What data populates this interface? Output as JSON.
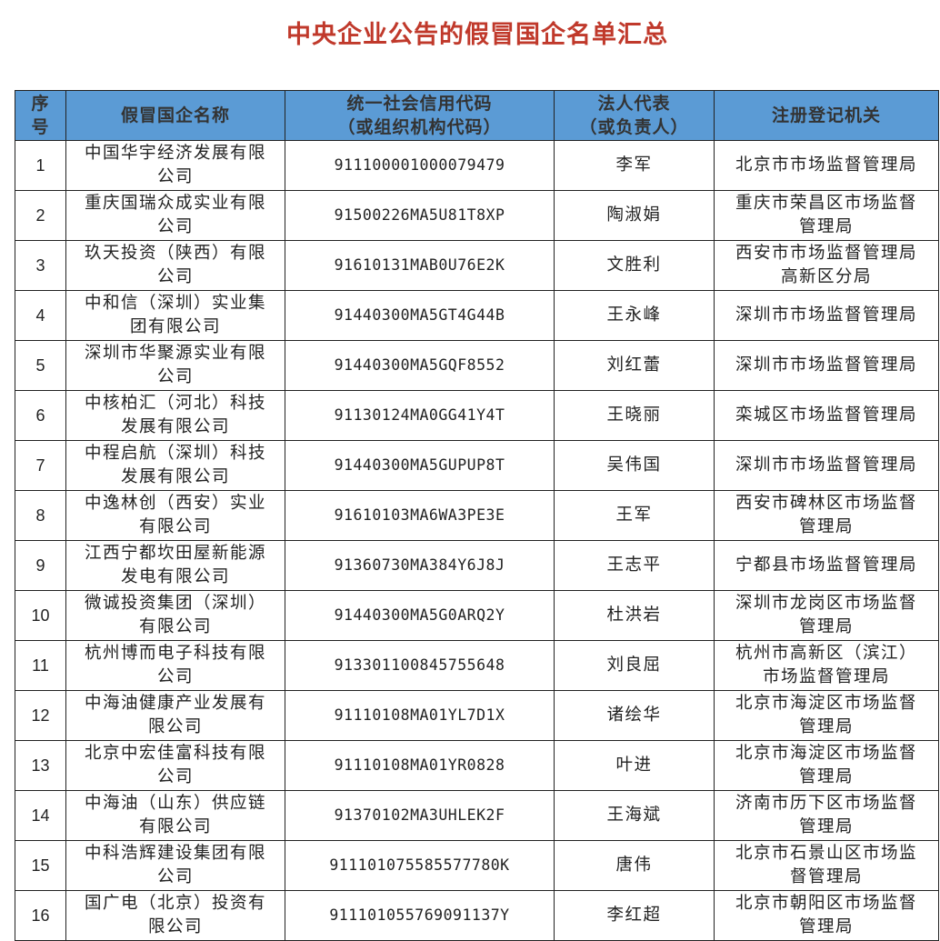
{
  "title": "中央企业公告的假冒国企名单汇总",
  "colors": {
    "title": "#c0392b",
    "header_bg": "#5b9bd5"
  },
  "headers": [
    "序\n号",
    "假冒国企名称",
    "统一社会信用代码\n（或组织机构代码）",
    "法人代表\n（或负责人）",
    "注册登记机关"
  ],
  "rows": [
    [
      "1",
      "中国华宇经济发展有限\n公司",
      "911100001000079479",
      "李军",
      "北京市市场监督管理局"
    ],
    [
      "2",
      "重庆国瑞众成实业有限\n公司",
      "91500226MA5U81T8XP",
      "陶淑娟",
      "重庆市荣昌区市场监督\n管理局"
    ],
    [
      "3",
      "玖天投资（陕西）有限\n公司",
      "91610131MAB0U76E2K",
      "文胜利",
      "西安市市场监督管理局\n高新区分局"
    ],
    [
      "4",
      "中和信（深圳）实业集\n团有限公司",
      "91440300MA5GT4G44B",
      "王永峰",
      "深圳市市场监督管理局"
    ],
    [
      "5",
      "深圳市华聚源实业有限\n公司",
      "91440300MA5GQF8552",
      "刘红蕾",
      "深圳市市场监督管理局"
    ],
    [
      "6",
      "中核柏汇（河北）科技\n发展有限公司",
      "91130124MA0GG41Y4T",
      "王晓丽",
      "栾城区市场监督管理局"
    ],
    [
      "7",
      "中程启航（深圳）科技\n发展有限公司",
      "91440300MA5GUPUP8T",
      "吴伟国",
      "深圳市市场监督管理局"
    ],
    [
      "8",
      "中逸林创（西安）实业\n有限公司",
      "91610103MA6WA3PE3E",
      "王军",
      "西安市碑林区市场监督\n管理局"
    ],
    [
      "9",
      "江西宁都坎田屋新能源\n发电有限公司",
      "91360730MA384Y6J8J",
      "王志平",
      "宁都县市场监督管理局"
    ],
    [
      "10",
      "微诚投资集团（深圳）\n有限公司",
      "91440300MA5G0ARQ2Y",
      "杜洪岩",
      "深圳市龙岗区市场监督\n管理局"
    ],
    [
      "11",
      "杭州博而电子科技有限\n公司",
      "913301100845755648",
      "刘良屈",
      "杭州市高新区（滨江）\n市场监督管理局"
    ],
    [
      "12",
      "中海油健康产业发展有\n限公司",
      "91110108MA01YL7D1X",
      "诸绘华",
      "北京市海淀区市场监督\n管理局"
    ],
    [
      "13",
      "北京中宏佳富科技有限\n公司",
      "91110108MA01YR0828",
      "叶进",
      "北京市海淀区市场监督\n管理局"
    ],
    [
      "14",
      "中海油（山东）供应链\n有限公司",
      "91370102MA3UHLEK2F",
      "王海斌",
      "济南市历下区市场监督\n管理局"
    ],
    [
      "15",
      "中科浩辉建设集团有限\n公司",
      "911101075585577780K",
      "唐伟",
      "北京市石景山区市场监\n督管理局"
    ],
    [
      "16",
      "国广电（北京）投资有\n限公司",
      "911101055769091137Y",
      "李红超",
      "北京市朝阳区市场监督\n管理局"
    ]
  ]
}
